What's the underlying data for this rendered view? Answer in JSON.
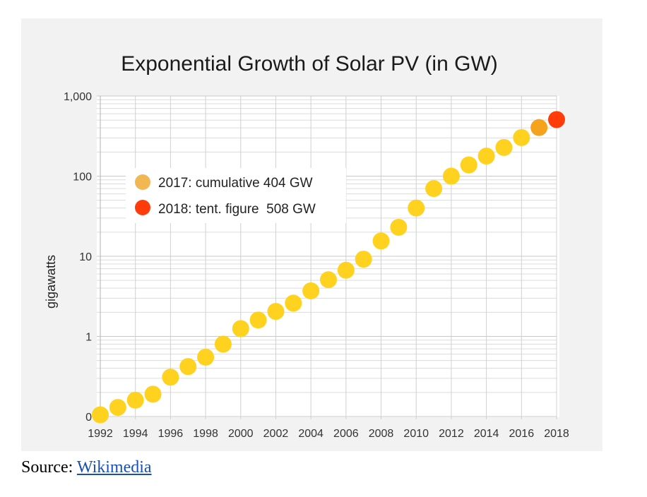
{
  "chart_data": {
    "type": "scatter",
    "title": "Exponential Growth of Solar PV (in GW)",
    "xlabel": "",
    "ylabel": "gigawatts",
    "yscale": "log",
    "ylim": [
      0.1,
      1000
    ],
    "xlim": [
      1992,
      2018
    ],
    "y_tick_labels": [
      "0",
      "1",
      "10",
      "100",
      "1,000"
    ],
    "y_tick_values": [
      0.1,
      1,
      10,
      100,
      1000
    ],
    "x_tick_labels": [
      "1992",
      "1994",
      "1996",
      "1998",
      "2000",
      "2002",
      "2004",
      "2006",
      "2008",
      "2010",
      "2012",
      "2014",
      "2016",
      "2018"
    ],
    "x": [
      1992,
      1993,
      1994,
      1995,
      1996,
      1997,
      1998,
      1999,
      2000,
      2001,
      2002,
      2003,
      2004,
      2005,
      2006,
      2007,
      2008,
      2009,
      2010,
      2011,
      2012,
      2013,
      2014,
      2015,
      2016,
      2017,
      2018
    ],
    "y": [
      0.105,
      0.13,
      0.16,
      0.19,
      0.31,
      0.42,
      0.55,
      0.8,
      1.25,
      1.6,
      2.05,
      2.6,
      3.7,
      5.1,
      6.7,
      9.2,
      15.5,
      23,
      40,
      70,
      100,
      138,
      178,
      228,
      303,
      404,
      508
    ],
    "point_colors": {
      "default": "#ffd21f",
      "2017": "#f5a21c",
      "2018": "#ff3c0a"
    },
    "legend": [
      {
        "label": "2017: cumulative 404 GW",
        "color": "#f0b752"
      },
      {
        "label": "2018: tent. figure  508 GW",
        "color": "#ff3c0a"
      }
    ],
    "grid": true
  },
  "source": {
    "prefix": "Source: ",
    "link_text": "Wikimedia"
  }
}
